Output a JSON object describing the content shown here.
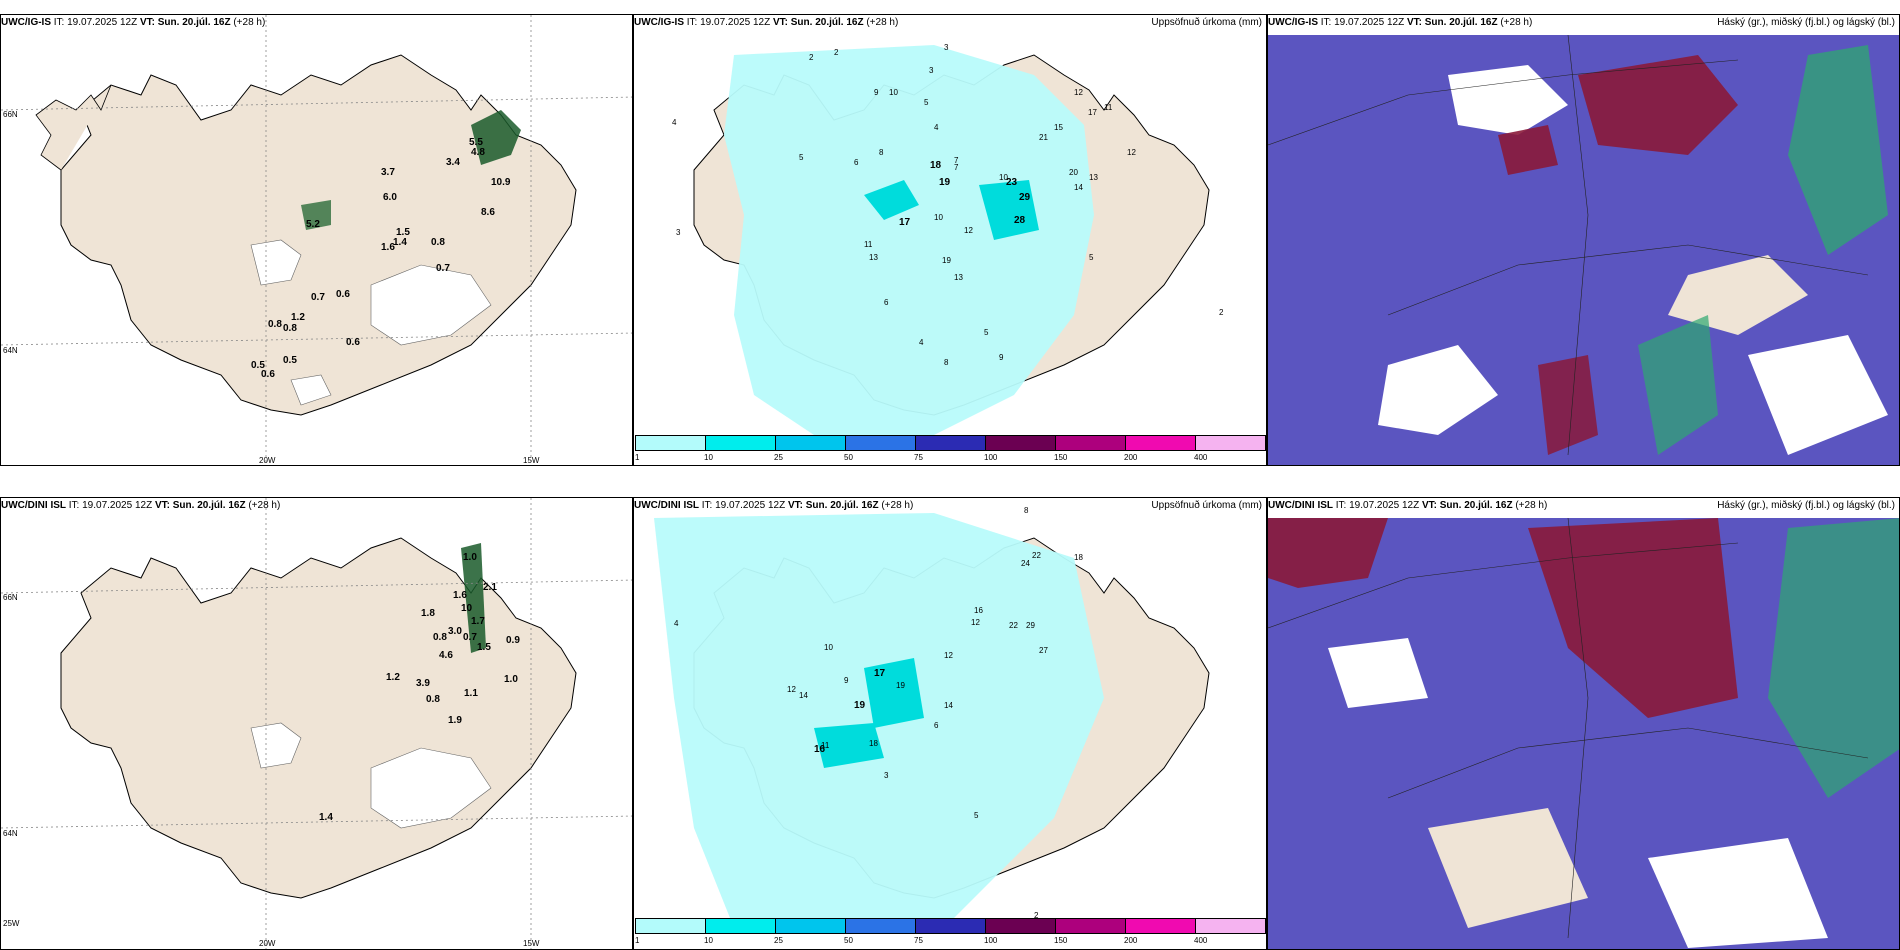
{
  "panels": [
    {
      "model": "UWC/IG-IS",
      "it": "IT: 19.07.2025 12Z",
      "vt_label": "VT:",
      "vt": "Sun. 20.júl. 16Z",
      "lead": "(+28 h)",
      "right": ""
    },
    {
      "model": "UWC/IG-IS",
      "it": "IT: 19.07.2025 12Z",
      "vt_label": "VT:",
      "vt": "Sun. 20.júl. 16Z",
      "lead": "(+28 h)",
      "right": "Uppsöfnuð úrkoma (mm)"
    },
    {
      "model": "UWC/IG-IS",
      "it": "IT: 19.07.2025 12Z",
      "vt_label": "VT:",
      "vt": "Sun. 20.júl. 16Z",
      "lead": "(+28 h)",
      "right": "Háský (gr.), miðský (fj.bl.) og lágský (bl.)"
    },
    {
      "model": "UWC/DINI ISL",
      "it": "IT: 19.07.2025 12Z",
      "vt_label": "VT:",
      "vt": "Sun. 20.júl. 16Z",
      "lead": "(+28 h)",
      "right": ""
    },
    {
      "model": "UWC/DINI ISL",
      "it": "IT: 19.07.2025 12Z",
      "vt_label": "VT:",
      "vt": "Sun. 20.júl. 16Z",
      "lead": "(+28 h)",
      "right": "Uppsöfnuð úrkoma (mm)"
    },
    {
      "model": "UWC/DINI ISL",
      "it": "IT: 19.07.2025 12Z",
      "vt_label": "VT:",
      "vt": "Sun. 20.júl. 16Z",
      "lead": "(+28 h)",
      "right": "Háský (gr.), miðský (fj.bl.) og lágský (bl.)"
    }
  ],
  "grid_labels": {
    "lat66": "66N",
    "lat64": "64N",
    "lon25": "25W",
    "lon20": "20W",
    "lon15": "15W"
  },
  "colorbar": {
    "ticks": [
      "1",
      "10",
      "25",
      "50",
      "75",
      "100",
      "150",
      "200",
      "400"
    ],
    "colors": [
      "#b3fbfb",
      "#00eded",
      "#00c5ed",
      "#2b73e6",
      "#2b2bb3",
      "#6b0052",
      "#ad007d",
      "#f00ab0",
      "#f5b3f0"
    ]
  },
  "colors": {
    "land": "#efe4d6",
    "precip_light": "#b8fbfb",
    "cloud_bg": "#5b55c0",
    "cloud_high": "#8a1a3a",
    "cloud_mid": "#2ea870"
  },
  "values_top_left": [
    "5.5",
    "3.4",
    "10.9",
    "4.8",
    "8.6",
    "3.7",
    "6.0",
    "5.2",
    "1.5",
    "1.6",
    "1.4",
    "0.8",
    "0.7",
    "0.7",
    "0.6",
    "1.2",
    "0.8",
    "0.8",
    "0.6",
    "0.5",
    "0.5",
    "0.6"
  ],
  "values_bottom_left": [
    "1.0",
    "2.1",
    "1.6",
    "1.8",
    "10",
    "1.7",
    "0.8",
    "3.0",
    "0.7",
    "0.9",
    "4.6",
    "1.5",
    "1.2",
    "3.9",
    "1.0",
    "0.8",
    "1.1",
    "1.9",
    "1.4"
  ],
  "values_top_mid": [
    "4",
    "2",
    "3",
    "2",
    "3",
    "5",
    "9",
    "10",
    "5",
    "4",
    "6",
    "8",
    "7",
    "18",
    "19",
    "7",
    "10",
    "23",
    "15",
    "21",
    "17",
    "11",
    "12",
    "29",
    "20",
    "13",
    "12",
    "17",
    "28",
    "10",
    "12",
    "11",
    "13",
    "14",
    "13",
    "19",
    "5",
    "8",
    "4",
    "5",
    "9",
    "6",
    "3",
    "2"
  ],
  "values_bottom_mid": [
    "4",
    "8",
    "22",
    "24",
    "18",
    "16",
    "12",
    "22",
    "29",
    "27",
    "17",
    "19",
    "19",
    "16",
    "12",
    "14",
    "11",
    "18",
    "9",
    "10",
    "14",
    "6",
    "12",
    "3",
    "5",
    "2"
  ]
}
